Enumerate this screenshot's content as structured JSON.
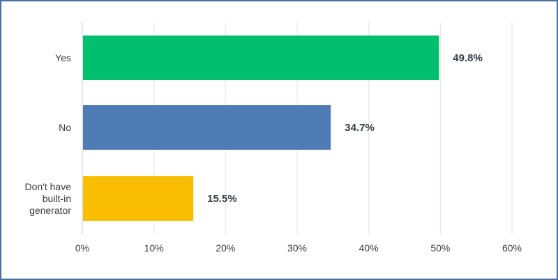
{
  "chart_data": {
    "type": "bar",
    "orientation": "horizontal",
    "categories": [
      [
        "Yes"
      ],
      [
        "No"
      ],
      [
        "Don't have",
        "built-in",
        "generator"
      ]
    ],
    "values": [
      49.8,
      34.7,
      15.5
    ],
    "value_labels": [
      "49.8%",
      "34.7%",
      "15.5%"
    ],
    "colors": [
      "#00bf6f",
      "#507cb6",
      "#f9be00"
    ],
    "xlim": [
      0,
      60
    ],
    "x_ticks": [
      0,
      10,
      20,
      30,
      40,
      50,
      60
    ],
    "x_tick_labels": [
      "0%",
      "10%",
      "20%",
      "30%",
      "40%",
      "50%",
      "60%"
    ],
    "grid": true,
    "title": "",
    "xlabel": "",
    "ylabel": ""
  }
}
